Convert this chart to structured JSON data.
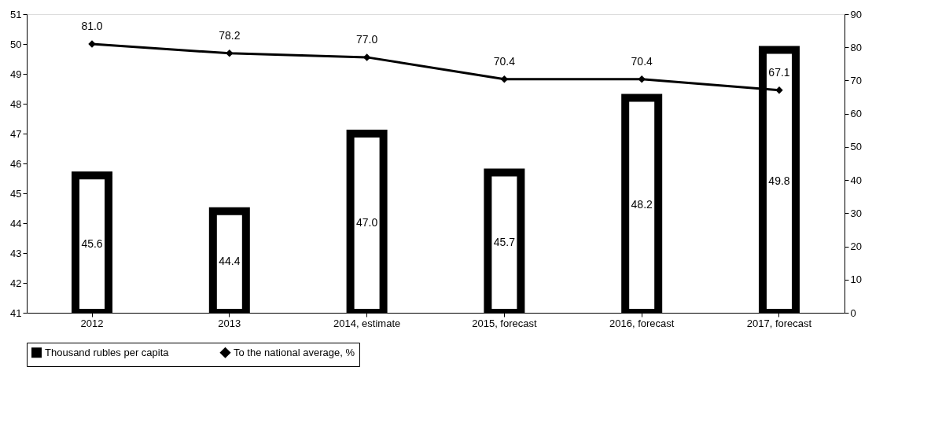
{
  "chart_data": {
    "type": "bar",
    "categories": [
      "2012",
      "2013",
      "2014, estimate",
      "2015, forecast",
      "2016, forecast",
      "2017, forecast"
    ],
    "series": [
      {
        "name": "Thousand rubles per capita",
        "color": "#000000",
        "values": [
          45.6,
          44.4,
          47.0,
          45.7,
          48.2,
          49.8
        ],
        "value_labels": [
          "45.6",
          "44.4",
          "47.0",
          "45.7",
          "48.2",
          "49.8"
        ]
      },
      {
        "name": "To the national average, %",
        "type": "line",
        "axis": "y2",
        "color": "#000000",
        "marker": "diamond",
        "values": [
          81.0,
          78.2,
          77.0,
          70.4,
          70.4,
          67.1
        ],
        "value_labels": [
          "81.0",
          "78.2",
          "77.0",
          "70.4",
          "70.4",
          "67.1"
        ]
      }
    ],
    "ylim": [
      41,
      51
    ],
    "yticks": [
      41,
      42,
      43,
      44,
      45,
      46,
      47,
      48,
      49,
      50,
      51
    ],
    "y2lim": [
      0,
      90
    ],
    "y2ticks": [
      0,
      10,
      20,
      30,
      40,
      50,
      60,
      70,
      80,
      90
    ],
    "grid": false,
    "legend": "bottom"
  }
}
